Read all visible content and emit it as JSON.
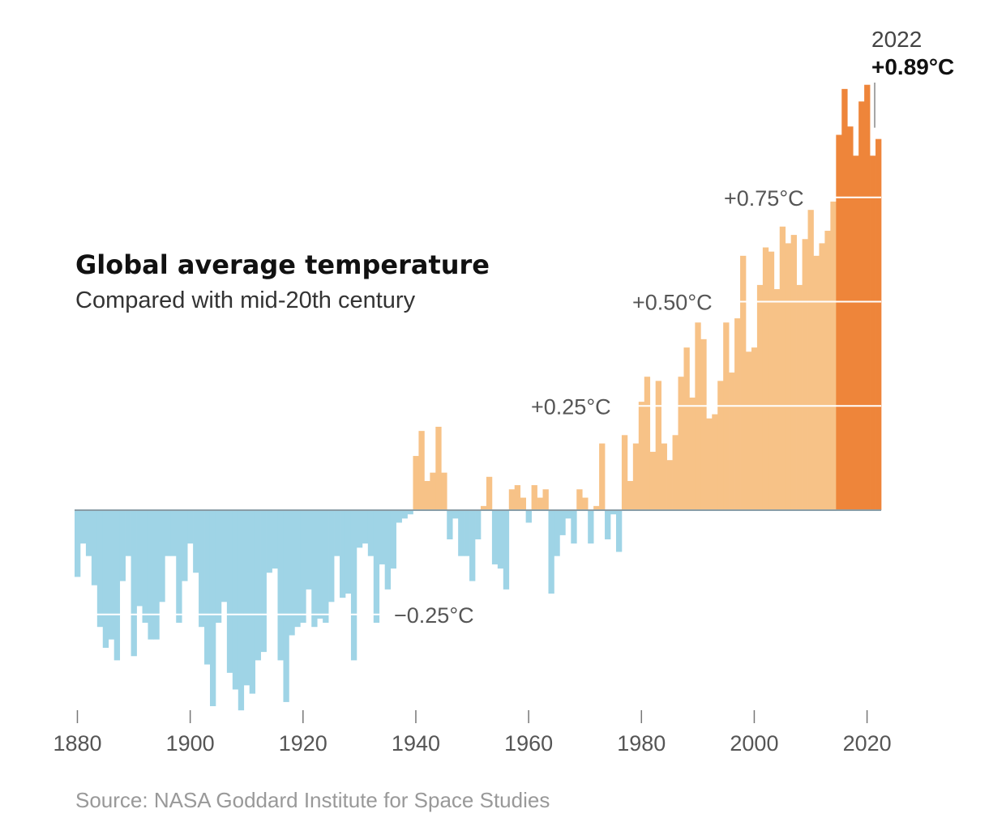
{
  "chart_data": {
    "type": "bar",
    "title": "Global average temperature",
    "subtitle": "Compared with mid-20th century",
    "source": "Source: NASA Goddard Institute for Space Studies",
    "unit": "°C",
    "x_ticks": [
      1880,
      1900,
      1920,
      1940,
      1960,
      1980,
      2000,
      2020
    ],
    "x_tick_labels": [
      "1880",
      "1900",
      "1920",
      "1940",
      "1960",
      "1980",
      "2000",
      "2020"
    ],
    "y_gridlines": [
      {
        "value": -0.25,
        "label": "−0.25°C"
      },
      {
        "value": 0.25,
        "label": "+0.25°C"
      },
      {
        "value": 0.5,
        "label": "+0.50°C"
      },
      {
        "value": 0.75,
        "label": "+0.75°C"
      }
    ],
    "highlight": {
      "year_label": "2022",
      "value_label": "+0.89°C",
      "year": 2022,
      "value": 0.89
    },
    "ylim": [
      -0.48,
      1.02
    ],
    "grid": true,
    "colors": {
      "negative": "#9fd4e6",
      "positive": "#f7c287",
      "recent": "#ee853a",
      "baseline": "#8a9da6",
      "grid": "#ffffff",
      "text": "#555555",
      "title": "#111111",
      "source": "#999999"
    },
    "recent_from_year": 2015,
    "years": [
      1880,
      1881,
      1882,
      1883,
      1884,
      1885,
      1886,
      1887,
      1888,
      1889,
      1890,
      1891,
      1892,
      1893,
      1894,
      1895,
      1896,
      1897,
      1898,
      1899,
      1900,
      1901,
      1902,
      1903,
      1904,
      1905,
      1906,
      1907,
      1908,
      1909,
      1910,
      1911,
      1912,
      1913,
      1914,
      1915,
      1916,
      1917,
      1918,
      1919,
      1920,
      1921,
      1922,
      1923,
      1924,
      1925,
      1926,
      1927,
      1928,
      1929,
      1930,
      1931,
      1932,
      1933,
      1934,
      1935,
      1936,
      1937,
      1938,
      1939,
      1940,
      1941,
      1942,
      1943,
      1944,
      1945,
      1946,
      1947,
      1948,
      1949,
      1950,
      1951,
      1952,
      1953,
      1954,
      1955,
      1956,
      1957,
      1958,
      1959,
      1960,
      1961,
      1962,
      1963,
      1964,
      1965,
      1966,
      1967,
      1968,
      1969,
      1970,
      1971,
      1972,
      1973,
      1974,
      1975,
      1976,
      1977,
      1978,
      1979,
      1980,
      1981,
      1982,
      1983,
      1984,
      1985,
      1986,
      1987,
      1988,
      1989,
      1990,
      1991,
      1992,
      1993,
      1994,
      1995,
      1996,
      1997,
      1998,
      1999,
      2000,
      2001,
      2002,
      2003,
      2004,
      2005,
      2006,
      2007,
      2008,
      2009,
      2010,
      2011,
      2012,
      2013,
      2014,
      2015,
      2016,
      2017,
      2018,
      2019,
      2020,
      2021,
      2022
    ],
    "values": [
      -0.16,
      -0.08,
      -0.11,
      -0.18,
      -0.28,
      -0.33,
      -0.31,
      -0.36,
      -0.17,
      -0.11,
      -0.35,
      -0.23,
      -0.27,
      -0.31,
      -0.31,
      -0.22,
      -0.11,
      -0.11,
      -0.27,
      -0.17,
      -0.08,
      -0.15,
      -0.28,
      -0.37,
      -0.47,
      -0.27,
      -0.22,
      -0.39,
      -0.43,
      -0.48,
      -0.42,
      -0.44,
      -0.36,
      -0.34,
      -0.15,
      -0.14,
      -0.36,
      -0.46,
      -0.3,
      -0.28,
      -0.27,
      -0.19,
      -0.28,
      -0.26,
      -0.27,
      -0.22,
      -0.11,
      -0.21,
      -0.2,
      -0.36,
      -0.09,
      -0.08,
      -0.11,
      -0.27,
      -0.13,
      -0.19,
      -0.14,
      -0.03,
      -0.02,
      -0.01,
      0.13,
      0.19,
      0.07,
      0.09,
      0.2,
      0.09,
      -0.07,
      -0.02,
      -0.11,
      -0.11,
      -0.17,
      -0.07,
      0.01,
      0.08,
      -0.13,
      -0.14,
      -0.19,
      0.05,
      0.06,
      0.03,
      -0.03,
      0.06,
      0.03,
      0.05,
      -0.2,
      -0.11,
      -0.06,
      -0.02,
      -0.08,
      0.05,
      0.03,
      -0.08,
      0.01,
      0.16,
      -0.07,
      -0.01,
      -0.1,
      0.18,
      0.07,
      0.16,
      0.26,
      0.32,
      0.14,
      0.31,
      0.16,
      0.12,
      0.18,
      0.32,
      0.39,
      0.27,
      0.45,
      0.41,
      0.22,
      0.23,
      0.31,
      0.45,
      0.33,
      0.46,
      0.61,
      0.38,
      0.39,
      0.54,
      0.63,
      0.62,
      0.53,
      0.68,
      0.64,
      0.66,
      0.54,
      0.65,
      0.72,
      0.61,
      0.64,
      0.67,
      0.74,
      0.9,
      1.01,
      0.92,
      0.85,
      0.98,
      1.02,
      0.85,
      0.89
    ]
  }
}
